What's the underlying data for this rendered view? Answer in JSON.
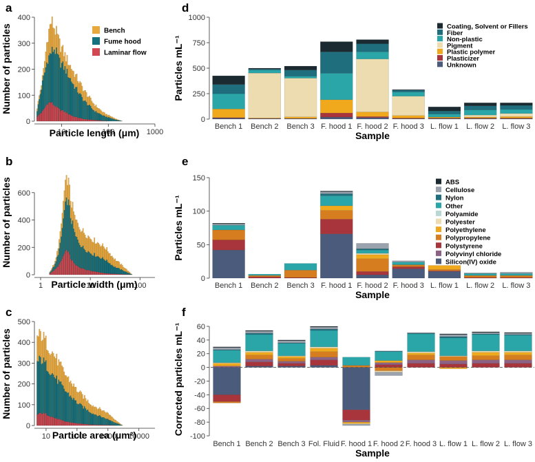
{
  "colors": {
    "bench": "#e8a83e",
    "fume": "#16717f",
    "laminar": "#d34753",
    "coating": "#1b2a30",
    "fiber": "#1f6e7d",
    "nonplastic": "#2aa5a8",
    "pigment": "#ecdcb0",
    "plasticpoly": "#f0a91c",
    "plasticizer": "#a8343c",
    "unknown": "#4a5b7c",
    "abs": "#1b2a30",
    "cellulose": "#9aa3ad",
    "nylon": "#1f6e7d",
    "other": "#2aa5a8",
    "polyamide": "#b9d7d4",
    "polyester": "#ecdcb0",
    "polyethylene": "#f0a91c",
    "polypropylene": "#d67d1f",
    "polystyrene": "#a8343c",
    "pvc": "#8c6385",
    "silicon": "#4a5b7c"
  },
  "panel_labels": {
    "a": "a",
    "b": "b",
    "c": "c",
    "d": "d",
    "e": "e",
    "f": "f"
  },
  "chart_data": [
    {
      "id": "a",
      "type": "bar",
      "subtype": "stacked-histogram",
      "xscale": "log",
      "xlabel": "Particle length (μm)",
      "ylabel": "Number of particles",
      "xticks": [
        "10",
        "100",
        "1000"
      ],
      "xtick_values": [
        10,
        100,
        1000
      ],
      "yticks": [
        "0",
        "100",
        "200",
        "300",
        "400"
      ],
      "xlim": [
        2.6,
        1000
      ],
      "ylim": [
        0,
        400
      ],
      "legend_position": "top-right",
      "legend": [
        "Bench",
        "Fume hood",
        "Laminar flow"
      ],
      "series_keys": [
        "laminar",
        "fume",
        "bench"
      ],
      "profiles": [
        {
          "name": "Laminar flow",
          "points": [
            [
              2.9,
              15
            ],
            [
              4,
              40
            ],
            [
              5,
              70
            ],
            [
              6,
              72
            ],
            [
              7,
              60
            ],
            [
              9,
              45
            ],
            [
              12,
              35
            ],
            [
              18,
              18
            ],
            [
              30,
              8
            ],
            [
              60,
              3
            ],
            [
              100,
              0
            ]
          ]
        },
        {
          "name": "Fume hood",
          "points": [
            [
              2.9,
              30
            ],
            [
              4,
              160
            ],
            [
              5,
              240
            ],
            [
              6,
              265
            ],
            [
              7,
              280
            ],
            [
              9,
              230
            ],
            [
              12,
              200
            ],
            [
              18,
              140
            ],
            [
              30,
              80
            ],
            [
              50,
              40
            ],
            [
              80,
              20
            ],
            [
              150,
              5
            ],
            [
              200,
              0
            ]
          ]
        },
        {
          "name": "Bench",
          "points": [
            [
              2.9,
              40
            ],
            [
              4,
              180
            ],
            [
              5,
              330
            ],
            [
              6,
              385
            ],
            [
              7,
              360
            ],
            [
              9,
              300
            ],
            [
              12,
              250
            ],
            [
              18,
              190
            ],
            [
              30,
              120
            ],
            [
              50,
              65
            ],
            [
              80,
              32
            ],
            [
              150,
              8
            ],
            [
              200,
              0
            ]
          ]
        }
      ]
    },
    {
      "id": "b",
      "type": "bar",
      "subtype": "stacked-histogram",
      "xscale": "log",
      "xlabel": "Particle width (μm)",
      "ylabel": "Number of particles",
      "xticks": [
        "1",
        "10",
        "100"
      ],
      "xtick_values": [
        1,
        10,
        100
      ],
      "yticks": [
        "0",
        "200",
        "400",
        "600"
      ],
      "xlim": [
        0.75,
        200
      ],
      "ylim": [
        0,
        760
      ],
      "series_keys": [
        "laminar",
        "fume",
        "bench"
      ],
      "profiles": [
        {
          "name": "Laminar flow",
          "points": [
            [
              1.5,
              5
            ],
            [
              2,
              40
            ],
            [
              2.5,
              85
            ],
            [
              3,
              150
            ],
            [
              3.5,
              180
            ],
            [
              4,
              120
            ],
            [
              5,
              70
            ],
            [
              7,
              45
            ],
            [
              10,
              30
            ],
            [
              20,
              10
            ],
            [
              50,
              2
            ],
            [
              70,
              0
            ]
          ]
        },
        {
          "name": "Fume hood",
          "points": [
            [
              1.5,
              10
            ],
            [
              2,
              80
            ],
            [
              2.5,
              220
            ],
            [
              3,
              460
            ],
            [
              3.5,
              560
            ],
            [
              4,
              430
            ],
            [
              5,
              280
            ],
            [
              7,
              200
            ],
            [
              10,
              160
            ],
            [
              20,
              110
            ],
            [
              30,
              60
            ],
            [
              50,
              25
            ],
            [
              70,
              0
            ]
          ]
        },
        {
          "name": "Bench",
          "points": [
            [
              1.5,
              15
            ],
            [
              2,
              100
            ],
            [
              2.5,
              300
            ],
            [
              3,
              600
            ],
            [
              3.5,
              720
            ],
            [
              4,
              560
            ],
            [
              5,
              400
            ],
            [
              7,
              320
            ],
            [
              10,
              270
            ],
            [
              20,
              200
            ],
            [
              30,
              120
            ],
            [
              50,
              50
            ],
            [
              70,
              0
            ]
          ]
        }
      ]
    },
    {
      "id": "c",
      "type": "bar",
      "subtype": "stacked-histogram",
      "xscale": "log",
      "xlabel": "Particle area (μm²)",
      "ylabel": "Number of particles",
      "xticks": [
        "10",
        "100",
        "1000",
        "10000"
      ],
      "xtick_values": [
        10,
        100,
        1000,
        10000
      ],
      "yticks": [
        "0",
        "100",
        "200",
        "300",
        "400",
        "500"
      ],
      "xlim": [
        4.2,
        33000
      ],
      "ylim": [
        0,
        500
      ],
      "series_keys": [
        "laminar",
        "fume",
        "bench"
      ],
      "profiles": [
        {
          "name": "Laminar flow",
          "points": [
            [
              5,
              50
            ],
            [
              7,
              60
            ],
            [
              10,
              55
            ],
            [
              20,
              35
            ],
            [
              40,
              20
            ],
            [
              100,
              10
            ],
            [
              300,
              4
            ],
            [
              1000,
              2
            ],
            [
              2000,
              0
            ]
          ]
        },
        {
          "name": "Fume hood",
          "points": [
            [
              5,
              300
            ],
            [
              7,
              320
            ],
            [
              10,
              290
            ],
            [
              20,
              230
            ],
            [
              40,
              170
            ],
            [
              100,
              110
            ],
            [
              300,
              60
            ],
            [
              1000,
              30
            ],
            [
              2000,
              10
            ],
            [
              3000,
              0
            ]
          ]
        },
        {
          "name": "Bench",
          "points": [
            [
              5,
              420
            ],
            [
              7,
              440
            ],
            [
              10,
              400
            ],
            [
              20,
              330
            ],
            [
              40,
              250
            ],
            [
              100,
              170
            ],
            [
              300,
              100
            ],
            [
              1000,
              60
            ],
            [
              2000,
              20
            ],
            [
              3000,
              0
            ]
          ]
        }
      ]
    },
    {
      "id": "d",
      "type": "bar",
      "subtype": "stacked",
      "xlabel": "Sample",
      "ylabel": "Particles mL⁻¹",
      "categories": [
        "Bench 1",
        "Bench 2",
        "Bench 3",
        "F. hood 1",
        "F. hood 2",
        "F. hood 3",
        "L. flow 1",
        "L. flow 2",
        "L. flow 3"
      ],
      "yticks": [
        "0",
        "250",
        "500",
        "750",
        "1000"
      ],
      "ylim": [
        0,
        1000
      ],
      "legend_position": "top-right",
      "legend": [
        "Coating, Solvent or Fillers",
        "Fiber",
        "Non-plastic",
        "Pigment",
        "Plastic polymer",
        "Plasticizer",
        "Unknown"
      ],
      "series": [
        {
          "name": "Unknown",
          "key": "unknown",
          "values": [
            10,
            5,
            5,
            20,
            15,
            5,
            5,
            5,
            5
          ]
        },
        {
          "name": "Plasticizer",
          "key": "plasticizer",
          "values": [
            5,
            2,
            2,
            40,
            10,
            5,
            5,
            5,
            5
          ]
        },
        {
          "name": "Plastic polymer",
          "key": "plasticpoly",
          "values": [
            85,
            5,
            15,
            130,
            45,
            25,
            10,
            10,
            15
          ]
        },
        {
          "name": "Pigment",
          "key": "pigment",
          "values": [
            0,
            440,
            380,
            0,
            520,
            190,
            0,
            20,
            30
          ]
        },
        {
          "name": "Non-plastic",
          "key": "nonplastic",
          "values": [
            150,
            30,
            20,
            260,
            70,
            40,
            30,
            50,
            40
          ]
        },
        {
          "name": "Fiber",
          "key": "fiber",
          "values": [
            90,
            10,
            60,
            210,
            80,
            20,
            30,
            40,
            40
          ]
        },
        {
          "name": "Coating, Solvent or Fillers",
          "key": "coating",
          "values": [
            85,
            8,
            38,
            100,
            40,
            5,
            40,
            30,
            25
          ]
        }
      ]
    },
    {
      "id": "e",
      "type": "bar",
      "subtype": "stacked",
      "xlabel": "Sample",
      "ylabel": "Particles mL⁻¹",
      "categories": [
        "Bench 1",
        "Bench 2",
        "Bench 3",
        "F. hood 1",
        "F. hood 2",
        "F. hood 3",
        "L. flow 1",
        "L. flow 2",
        "L. flow 3"
      ],
      "yticks": [
        "0",
        "50",
        "100",
        "150"
      ],
      "ylim": [
        0,
        150
      ],
      "legend_position": "top-right",
      "legend": [
        "ABS",
        "Cellulose",
        "Nylon",
        "Other",
        "Polyamide",
        "Polyester",
        "Polyethylene",
        "Polypropylene",
        "Polystyrene",
        "Polyvinyl chloride",
        "Silicon(IV) oxide"
      ],
      "series": [
        {
          "name": "Silicon(IV) oxide",
          "key": "silicon",
          "values": [
            42,
            0,
            0,
            66,
            5,
            14,
            10,
            0,
            0
          ]
        },
        {
          "name": "Polyvinyl chloride",
          "key": "pvc",
          "values": [
            0,
            0,
            0,
            0,
            0,
            0,
            0,
            0,
            0
          ]
        },
        {
          "name": "Polystyrene",
          "key": "polystyrene",
          "values": [
            15,
            2,
            1,
            22,
            5,
            3,
            1,
            1,
            1
          ]
        },
        {
          "name": "Polypropylene",
          "key": "polypropylene",
          "values": [
            15,
            2,
            11,
            13,
            19,
            3,
            2,
            3,
            3
          ]
        },
        {
          "name": "Polyethylene",
          "key": "polyethylene",
          "values": [
            0,
            0,
            0,
            7,
            6,
            0,
            6,
            0,
            0
          ]
        },
        {
          "name": "Polyester",
          "key": "polyester",
          "values": [
            0,
            0,
            0,
            0,
            2,
            0,
            0,
            0,
            0
          ]
        },
        {
          "name": "Polyamide",
          "key": "polyamide",
          "values": [
            0,
            0,
            0,
            0,
            0,
            0,
            0,
            0,
            0
          ]
        },
        {
          "name": "Other",
          "key": "other",
          "values": [
            7,
            2,
            10,
            15,
            5,
            4,
            0,
            3,
            3
          ]
        },
        {
          "name": "Nylon",
          "key": "nylon",
          "values": [
            0,
            0,
            0,
            3,
            2,
            0,
            0,
            0,
            0
          ]
        },
        {
          "name": "Cellulose",
          "key": "cellulose",
          "values": [
            2,
            0,
            0,
            3,
            8,
            2,
            0,
            1,
            2
          ]
        },
        {
          "name": "ABS",
          "key": "abs",
          "values": [
            1,
            0,
            0,
            1,
            0,
            0,
            0,
            0,
            0
          ]
        }
      ]
    },
    {
      "id": "f",
      "type": "bar",
      "subtype": "stacked-diverging",
      "xlabel": "Sample",
      "ylabel": "Corrected particles mL⁻¹",
      "categories": [
        "Bench 1",
        "Bench 2",
        "Bench 3",
        "Fol. Fluid",
        "F. hood 1",
        "F. hood 2",
        "F. hood 3",
        "L. flow 1",
        "L. flow 2",
        "L. flow 3"
      ],
      "yticks": [
        "60",
        "40",
        "20",
        "0",
        "-20",
        "-40",
        "-60",
        "-80",
        "-100"
      ],
      "ylim": [
        -100,
        65
      ],
      "zero_line": "dashed",
      "series": [
        {
          "name": "Silicon(IV) oxide",
          "key": "silicon",
          "values": [
            -40,
            2,
            2,
            3,
            -62,
            0,
            0,
            0,
            0,
            0
          ]
        },
        {
          "name": "Polystyrene",
          "key": "polystyrene",
          "values": [
            -10,
            6,
            4,
            8,
            -15,
            4,
            6,
            5,
            6,
            6
          ]
        },
        {
          "name": "Polyvinyl chloride",
          "key": "pvc",
          "values": [
            2,
            4,
            3,
            4,
            -3,
            3,
            5,
            5,
            5,
            5
          ]
        },
        {
          "name": "Polypropylene",
          "key": "polypropylene",
          "values": [
            -2,
            6,
            4,
            8,
            3,
            -5,
            7,
            6,
            6,
            7
          ]
        },
        {
          "name": "Polyethylene",
          "key": "polyethylene",
          "values": [
            4,
            4,
            3,
            5,
            -2,
            3,
            3,
            -2,
            5,
            4
          ]
        },
        {
          "name": "Polyester",
          "key": "polyester",
          "values": [
            1,
            2,
            1,
            2,
            -1,
            -2,
            2,
            1,
            2,
            2
          ]
        },
        {
          "name": "Other",
          "key": "other",
          "values": [
            18,
            24,
            18,
            24,
            12,
            13,
            26,
            26,
            24,
            23
          ]
        },
        {
          "name": "Nylon",
          "key": "nylon",
          "values": [
            1,
            2,
            1,
            2,
            0,
            1,
            1,
            2,
            1,
            1
          ]
        },
        {
          "name": "Cellulose",
          "key": "cellulose",
          "values": [
            3,
            3,
            3,
            3,
            -2,
            -5,
            1,
            3,
            2,
            2
          ]
        },
        {
          "name": "ABS",
          "key": "abs",
          "values": [
            1,
            1,
            1,
            1,
            0,
            0,
            0,
            1,
            1,
            1
          ]
        }
      ]
    }
  ]
}
